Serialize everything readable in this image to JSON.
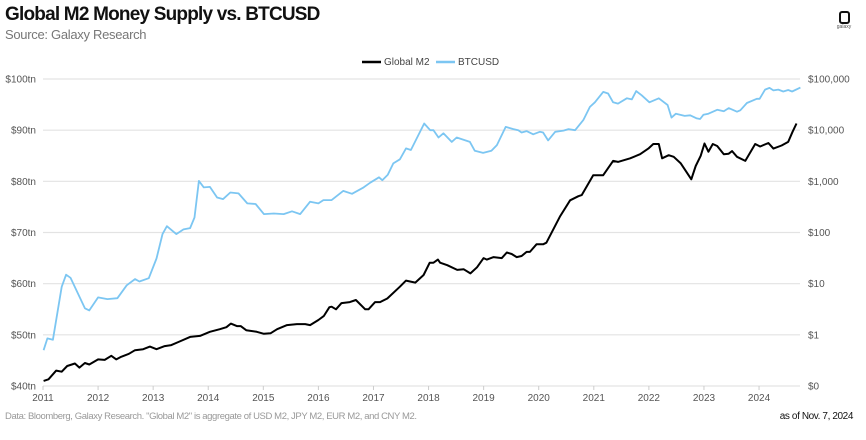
{
  "title": "Global M2 Money Supply vs. BTCUSD",
  "subtitle": "Source: Galaxy Research",
  "logo_text": "galaxy",
  "footer_note": "Data: Bloomberg, Galaxy Research. \"Global M2\" is aggregate of USD M2, JPY M2, EUR M2, and CNY M2.",
  "as_of": "as of Nov. 7, 2024",
  "chart_data": {
    "type": "line",
    "title": "Global M2 Money Supply vs. BTCUSD",
    "legend_position": "top-center",
    "grid": true,
    "x_ticks": [
      "2011",
      "2012",
      "2013",
      "2014",
      "2015",
      "2016",
      "2017",
      "2018",
      "2019",
      "2020",
      "2021",
      "2022",
      "2023",
      "2024"
    ],
    "xlim": [
      2011,
      2024.75
    ],
    "left_axis": {
      "ylim": [
        40,
        100
      ],
      "ticks": [
        {
          "v": 40,
          "label": "$40tn"
        },
        {
          "v": 50,
          "label": "$50tn"
        },
        {
          "v": 60,
          "label": "$60tn"
        },
        {
          "v": 70,
          "label": "$70tn"
        },
        {
          "v": 80,
          "label": "$80tn"
        },
        {
          "v": 90,
          "label": "$90tn"
        },
        {
          "v": 100,
          "label": "$100tn"
        }
      ]
    },
    "right_axis": {
      "scale": "log",
      "ylim": [
        0.1,
        100000
      ],
      "ticks": [
        {
          "v": 0.1,
          "label": "$0"
        },
        {
          "v": 1,
          "label": "$1"
        },
        {
          "v": 10,
          "label": "$10"
        },
        {
          "v": 100,
          "label": "$100"
        },
        {
          "v": 1000,
          "label": "$1,000"
        },
        {
          "v": 10000,
          "label": "$10,000"
        },
        {
          "v": 100000,
          "label": "$100,000"
        }
      ]
    },
    "series": [
      {
        "name": "Global M2",
        "axis": "left",
        "color": "#000000",
        "points": [
          [
            2011.01,
            41.0
          ],
          [
            2011.1,
            41.3
          ],
          [
            2011.24,
            43.0
          ],
          [
            2011.34,
            42.8
          ],
          [
            2011.44,
            43.9
          ],
          [
            2011.58,
            44.4
          ],
          [
            2011.66,
            43.6
          ],
          [
            2011.76,
            44.5
          ],
          [
            2011.84,
            44.2
          ],
          [
            2012.0,
            45.2
          ],
          [
            2012.12,
            45.1
          ],
          [
            2012.24,
            45.9
          ],
          [
            2012.33,
            45.2
          ],
          [
            2012.42,
            45.7
          ],
          [
            2012.56,
            46.3
          ],
          [
            2012.67,
            47.0
          ],
          [
            2012.82,
            47.2
          ],
          [
            2012.94,
            47.7
          ],
          [
            2013.06,
            47.2
          ],
          [
            2013.21,
            47.8
          ],
          [
            2013.33,
            48.0
          ],
          [
            2013.48,
            48.7
          ],
          [
            2013.67,
            49.6
          ],
          [
            2013.85,
            49.8
          ],
          [
            2014.03,
            50.6
          ],
          [
            2014.21,
            51.1
          ],
          [
            2014.33,
            51.5
          ],
          [
            2014.41,
            52.2
          ],
          [
            2014.52,
            51.7
          ],
          [
            2014.59,
            51.7
          ],
          [
            2014.69,
            50.9
          ],
          [
            2014.88,
            50.6
          ],
          [
            2015.01,
            50.2
          ],
          [
            2015.13,
            50.3
          ],
          [
            2015.25,
            51.1
          ],
          [
            2015.43,
            51.9
          ],
          [
            2015.61,
            52.1
          ],
          [
            2015.76,
            52.1
          ],
          [
            2015.85,
            51.9
          ],
          [
            2016.0,
            52.9
          ],
          [
            2016.1,
            53.7
          ],
          [
            2016.2,
            55.4
          ],
          [
            2016.24,
            55.5
          ],
          [
            2016.32,
            55.0
          ],
          [
            2016.42,
            56.2
          ],
          [
            2016.57,
            56.4
          ],
          [
            2016.68,
            56.8
          ],
          [
            2016.85,
            55.0
          ],
          [
            2016.91,
            55.0
          ],
          [
            2017.03,
            56.4
          ],
          [
            2017.12,
            56.4
          ],
          [
            2017.25,
            57.1
          ],
          [
            2017.48,
            59.4
          ],
          [
            2017.59,
            60.6
          ],
          [
            2017.76,
            60.2
          ],
          [
            2017.91,
            61.7
          ],
          [
            2018.02,
            64.1
          ],
          [
            2018.09,
            64.1
          ],
          [
            2018.17,
            64.7
          ],
          [
            2018.21,
            64.1
          ],
          [
            2018.34,
            63.6
          ],
          [
            2018.52,
            62.7
          ],
          [
            2018.64,
            62.8
          ],
          [
            2018.76,
            62.0
          ],
          [
            2018.88,
            63.2
          ],
          [
            2019.0,
            65.0
          ],
          [
            2019.06,
            64.7
          ],
          [
            2019.18,
            65.2
          ],
          [
            2019.33,
            65.0
          ],
          [
            2019.42,
            66.1
          ],
          [
            2019.51,
            65.8
          ],
          [
            2019.6,
            65.2
          ],
          [
            2019.69,
            65.4
          ],
          [
            2019.78,
            66.2
          ],
          [
            2019.84,
            66.2
          ],
          [
            2019.96,
            67.7
          ],
          [
            2020.08,
            67.7
          ],
          [
            2020.14,
            68.0
          ],
          [
            2020.39,
            73.2
          ],
          [
            2020.57,
            76.3
          ],
          [
            2020.72,
            77.1
          ],
          [
            2020.78,
            77.3
          ],
          [
            2020.99,
            81.2
          ],
          [
            2021.17,
            81.2
          ],
          [
            2021.35,
            84.0
          ],
          [
            2021.44,
            83.8
          ],
          [
            2021.66,
            84.5
          ],
          [
            2021.84,
            85.3
          ],
          [
            2021.99,
            86.4
          ],
          [
            2022.08,
            87.3
          ],
          [
            2022.18,
            87.3
          ],
          [
            2022.24,
            84.5
          ],
          [
            2022.36,
            85.1
          ],
          [
            2022.45,
            84.8
          ],
          [
            2022.58,
            83.5
          ],
          [
            2022.66,
            82.2
          ],
          [
            2022.77,
            80.4
          ],
          [
            2022.85,
            83.0
          ],
          [
            2022.94,
            85.0
          ],
          [
            2023.01,
            87.4
          ],
          [
            2023.08,
            85.8
          ],
          [
            2023.16,
            87.3
          ],
          [
            2023.24,
            86.9
          ],
          [
            2023.36,
            85.3
          ],
          [
            2023.45,
            85.4
          ],
          [
            2023.51,
            85.9
          ],
          [
            2023.6,
            84.8
          ],
          [
            2023.75,
            84.0
          ],
          [
            2023.93,
            87.3
          ],
          [
            2024.02,
            86.8
          ],
          [
            2024.17,
            87.5
          ],
          [
            2024.26,
            86.4
          ],
          [
            2024.41,
            87.0
          ],
          [
            2024.53,
            87.7
          ],
          [
            2024.61,
            89.7
          ],
          [
            2024.68,
            91.3
          ]
        ]
      },
      {
        "name": "BTCUSD",
        "axis": "right",
        "color": "#7cc6f2",
        "points": [
          [
            2011.01,
            0.5
          ],
          [
            2011.08,
            0.85
          ],
          [
            2011.18,
            0.8
          ],
          [
            2011.34,
            8.7
          ],
          [
            2011.42,
            15
          ],
          [
            2011.5,
            13
          ],
          [
            2011.76,
            3.3
          ],
          [
            2011.84,
            3
          ],
          [
            2012.0,
            5.4
          ],
          [
            2012.17,
            5
          ],
          [
            2012.35,
            5.2
          ],
          [
            2012.52,
            9.3
          ],
          [
            2012.67,
            12.3
          ],
          [
            2012.75,
            11
          ],
          [
            2012.92,
            12.8
          ],
          [
            2013.06,
            31
          ],
          [
            2013.17,
            93
          ],
          [
            2013.25,
            133
          ],
          [
            2013.42,
            93
          ],
          [
            2013.55,
            115
          ],
          [
            2013.67,
            122
          ],
          [
            2013.75,
            196
          ],
          [
            2013.83,
            1020
          ],
          [
            2013.92,
            760
          ],
          [
            2014.03,
            780
          ],
          [
            2014.16,
            484
          ],
          [
            2014.27,
            450
          ],
          [
            2014.4,
            605
          ],
          [
            2014.55,
            580
          ],
          [
            2014.71,
            370
          ],
          [
            2014.86,
            360
          ],
          [
            2015.01,
            229
          ],
          [
            2015.19,
            235
          ],
          [
            2015.37,
            229
          ],
          [
            2015.52,
            260
          ],
          [
            2015.67,
            229
          ],
          [
            2015.85,
            400
          ],
          [
            2016.0,
            370
          ],
          [
            2016.09,
            430
          ],
          [
            2016.24,
            430
          ],
          [
            2016.45,
            650
          ],
          [
            2016.61,
            570
          ],
          [
            2016.82,
            760
          ],
          [
            2016.94,
            940
          ],
          [
            2017.1,
            1200
          ],
          [
            2017.16,
            1050
          ],
          [
            2017.26,
            1350
          ],
          [
            2017.36,
            2240
          ],
          [
            2017.48,
            2700
          ],
          [
            2017.59,
            4400
          ],
          [
            2017.68,
            4100
          ],
          [
            2017.92,
            13500
          ],
          [
            2018.03,
            10000
          ],
          [
            2018.09,
            10000
          ],
          [
            2018.18,
            7200
          ],
          [
            2018.27,
            8700
          ],
          [
            2018.42,
            5900
          ],
          [
            2018.51,
            7200
          ],
          [
            2018.75,
            5900
          ],
          [
            2018.84,
            3950
          ],
          [
            2018.99,
            3600
          ],
          [
            2019.14,
            3950
          ],
          [
            2019.24,
            5100
          ],
          [
            2019.4,
            11600
          ],
          [
            2019.54,
            10500
          ],
          [
            2019.63,
            10000
          ],
          [
            2019.69,
            9000
          ],
          [
            2019.78,
            9600
          ],
          [
            2019.9,
            8300
          ],
          [
            2020.02,
            9300
          ],
          [
            2020.08,
            9000
          ],
          [
            2020.17,
            6300
          ],
          [
            2020.3,
            9300
          ],
          [
            2020.45,
            9800
          ],
          [
            2020.54,
            10500
          ],
          [
            2020.66,
            10000
          ],
          [
            2020.81,
            15700
          ],
          [
            2020.93,
            28500
          ],
          [
            2021.02,
            35000
          ],
          [
            2021.17,
            56000
          ],
          [
            2021.26,
            52000
          ],
          [
            2021.35,
            35000
          ],
          [
            2021.44,
            33000
          ],
          [
            2021.6,
            42000
          ],
          [
            2021.69,
            40000
          ],
          [
            2021.77,
            58000
          ],
          [
            2021.87,
            48000
          ],
          [
            2022.01,
            35000
          ],
          [
            2022.18,
            42000
          ],
          [
            2022.34,
            31000
          ],
          [
            2022.41,
            17600
          ],
          [
            2022.49,
            21000
          ],
          [
            2022.65,
            19000
          ],
          [
            2022.75,
            19500
          ],
          [
            2022.87,
            17000
          ],
          [
            2022.93,
            16500
          ],
          [
            2022.99,
            20000
          ],
          [
            2023.08,
            21000
          ],
          [
            2023.24,
            25000
          ],
          [
            2023.36,
            23500
          ],
          [
            2023.45,
            27000
          ],
          [
            2023.6,
            23000
          ],
          [
            2023.66,
            24500
          ],
          [
            2023.78,
            34000
          ],
          [
            2023.96,
            41000
          ],
          [
            2024.01,
            41000
          ],
          [
            2024.11,
            62000
          ],
          [
            2024.19,
            67000
          ],
          [
            2024.26,
            60000
          ],
          [
            2024.35,
            62000
          ],
          [
            2024.44,
            57000
          ],
          [
            2024.53,
            61000
          ],
          [
            2024.6,
            57000
          ],
          [
            2024.75,
            68000
          ]
        ]
      }
    ]
  }
}
